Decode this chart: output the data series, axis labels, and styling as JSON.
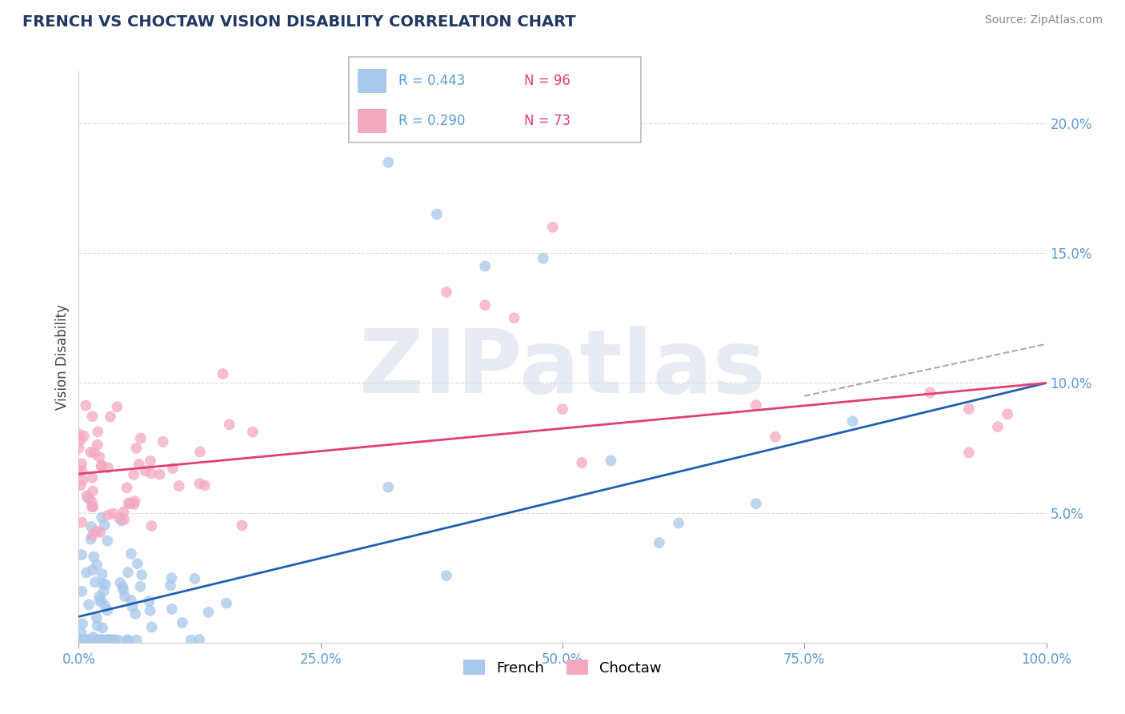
{
  "title": "FRENCH VS CHOCTAW VISION DISABILITY CORRELATION CHART",
  "source": "Source: ZipAtlas.com",
  "ylabel": "Vision Disability",
  "french_r": 0.443,
  "french_n": 96,
  "choctaw_r": 0.29,
  "choctaw_n": 73,
  "french_color": "#A8C8EC",
  "choctaw_color": "#F4A8C0",
  "french_line_color": "#2060B0",
  "choctaw_line_color": "#E04070",
  "french_line_dash_color": "#AAAAAA",
  "watermark_color": "#D0D8E8",
  "xlim": [
    0.0,
    1.0
  ],
  "ylim": [
    0.0,
    0.22
  ],
  "xticks": [
    0.0,
    0.25,
    0.5,
    0.75,
    1.0
  ],
  "yticks": [
    0.05,
    0.1,
    0.15,
    0.2
  ],
  "title_color": "#1F3864",
  "tick_color": "#5B9BD5",
  "source_color": "#888888",
  "ylabel_color": "#444444"
}
